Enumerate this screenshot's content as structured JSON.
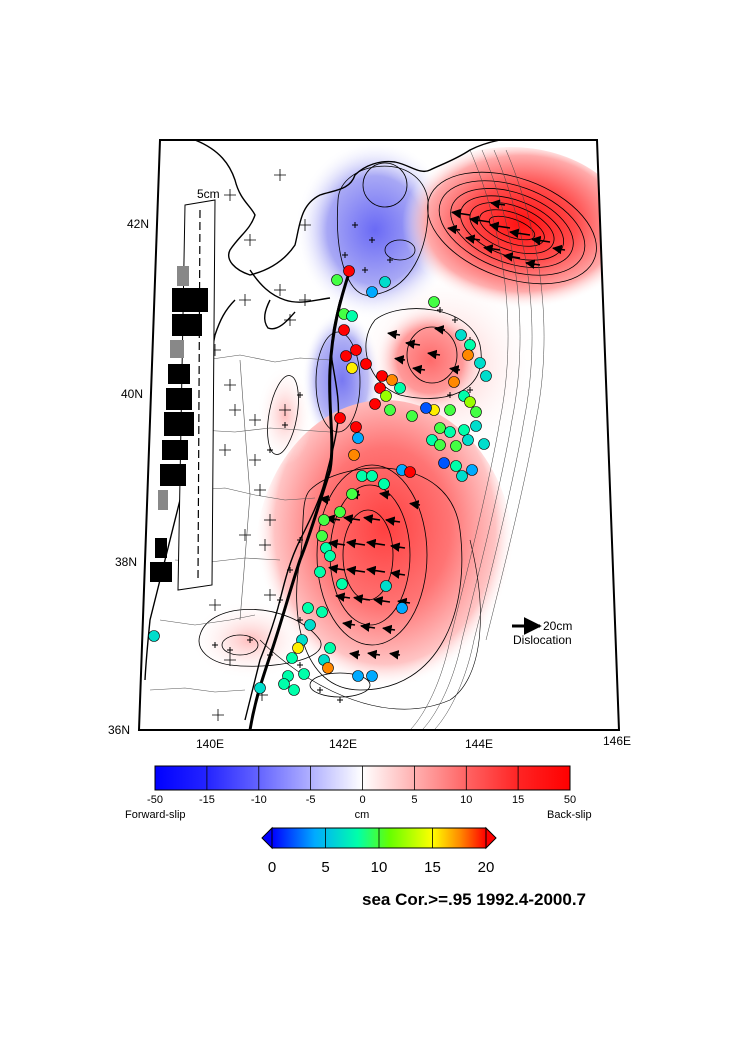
{
  "map": {
    "lat_labels": [
      "42N",
      "40N",
      "38N",
      "36N"
    ],
    "lon_labels": [
      "140E",
      "142E",
      "144E",
      "146E"
    ],
    "scale_box_label": "5cm",
    "dislocation_reference": {
      "value_label": "20cm",
      "label": "Dislocation"
    }
  },
  "slip_colorbar": {
    "tick_labels": [
      "-50",
      "-15",
      "-10",
      "-5",
      "0",
      "5",
      "10",
      "15",
      "50"
    ],
    "unit_label": "cm",
    "left_label": "Forward-slip",
    "right_label": "Back-slip",
    "colors": {
      "negative": "#0000ff",
      "zero": "#ffffff",
      "positive": "#ff0000"
    }
  },
  "station_colorbar": {
    "tick_labels": [
      "0",
      "5",
      "10",
      "15",
      "20"
    ],
    "colors": [
      "#0000ff",
      "#00aaff",
      "#00ffaa",
      "#66ff00",
      "#ffff00",
      "#ff8800",
      "#ff0000"
    ]
  },
  "caption": "sea Cor.>=.95 1992.4-2000.7"
}
